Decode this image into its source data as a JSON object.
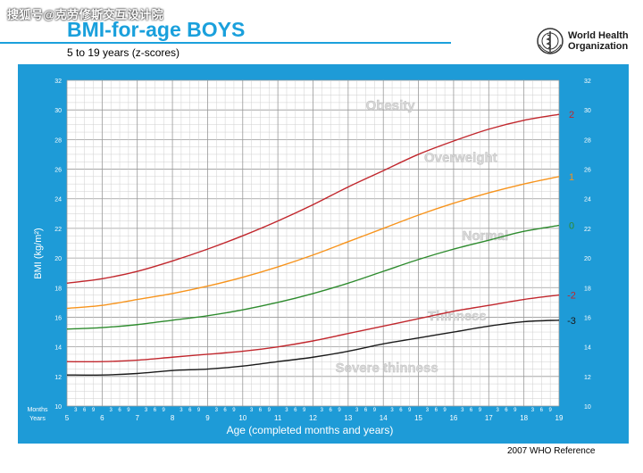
{
  "watermark": "搜狐号@克劳修斯交互设计院",
  "header": {
    "title": "BMI-for-age  BOYS",
    "subtitle": "5 to 19 years (z-scores)",
    "org_line1": "World Health",
    "org_line2": "Organization",
    "logo_icon": "who-emblem-icon"
  },
  "footer": "2007  WHO Reference",
  "colors": {
    "panel": "#1e9bd7",
    "plot_bg": "#ffffff",
    "grid": "#bbbbbb",
    "z2": "#c1272d",
    "z1": "#f7941d",
    "z0": "#2e8b2e",
    "zm2": "#c1272d",
    "zm3": "#1a1a1a"
  },
  "chart_data": {
    "type": "line",
    "title": "BMI-for-age  BOYS",
    "subtitle": "5 to 19 years (z-scores)",
    "xlabel": "Age (completed months and years)",
    "ylabel": "BMI (kg/m²)",
    "xlim": [
      5,
      19
    ],
    "ylim": [
      10,
      32
    ],
    "y_ticks": [
      10,
      12,
      14,
      16,
      18,
      20,
      22,
      24,
      26,
      28,
      30,
      32
    ],
    "x_year_ticks": [
      5,
      6,
      7,
      8,
      9,
      10,
      11,
      12,
      13,
      14,
      15,
      16,
      17,
      18,
      19
    ],
    "x_month_ticks": [
      "3",
      "6",
      "9"
    ],
    "months_label": "Months",
    "years_label": "Years",
    "grid": true,
    "x": [
      5,
      6,
      7,
      8,
      9,
      10,
      11,
      12,
      13,
      14,
      15,
      16,
      17,
      18,
      19
    ],
    "series": [
      {
        "name": "2",
        "color": "#c1272d",
        "values": [
          18.3,
          18.6,
          19.1,
          19.8,
          20.6,
          21.5,
          22.5,
          23.6,
          24.8,
          25.9,
          27.0,
          27.9,
          28.7,
          29.3,
          29.7
        ]
      },
      {
        "name": "1",
        "color": "#f7941d",
        "values": [
          16.6,
          16.8,
          17.2,
          17.6,
          18.1,
          18.7,
          19.4,
          20.2,
          21.1,
          22.0,
          22.9,
          23.7,
          24.4,
          25.0,
          25.5
        ]
      },
      {
        "name": "0",
        "color": "#2e8b2e",
        "values": [
          15.2,
          15.3,
          15.5,
          15.8,
          16.1,
          16.5,
          17.0,
          17.6,
          18.3,
          19.1,
          19.9,
          20.6,
          21.2,
          21.8,
          22.2
        ]
      },
      {
        "name": "-2",
        "color": "#c1272d",
        "values": [
          13.0,
          13.0,
          13.1,
          13.3,
          13.5,
          13.7,
          14.0,
          14.4,
          14.9,
          15.4,
          15.9,
          16.4,
          16.8,
          17.2,
          17.5
        ]
      },
      {
        "name": "-3",
        "color": "#1a1a1a",
        "values": [
          12.1,
          12.1,
          12.2,
          12.4,
          12.5,
          12.7,
          13.0,
          13.3,
          13.7,
          14.2,
          14.6,
          15.0,
          15.4,
          15.7,
          15.8
        ]
      }
    ],
    "zone_labels": [
      {
        "text": "Obesity",
        "x": 14.2,
        "y": 30.0
      },
      {
        "text": "Overweight",
        "x": 16.2,
        "y": 26.5
      },
      {
        "text": "Normal",
        "x": 16.9,
        "y": 21.2
      },
      {
        "text": "Thinness",
        "x": 16.1,
        "y": 15.8
      },
      {
        "text": "Severe thinness",
        "x": 14.1,
        "y": 12.3
      }
    ]
  }
}
